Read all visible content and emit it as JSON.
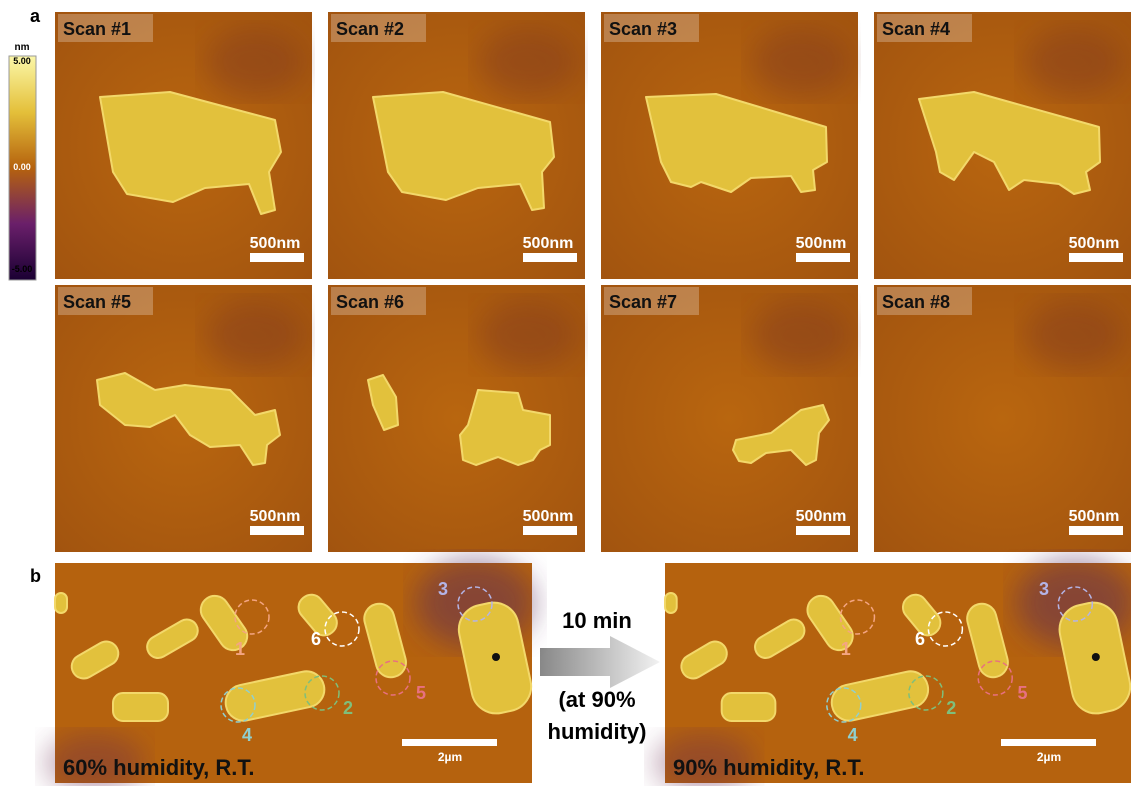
{
  "panel_a": {
    "label": "a",
    "colorbar": {
      "unit": "nm",
      "ticks": [
        "5.00",
        "0.00",
        "-5.00"
      ]
    },
    "scans": [
      {
        "title": "Scan #1",
        "scale_bar": "500nm"
      },
      {
        "title": "Scan #2",
        "scale_bar": "500nm"
      },
      {
        "title": "Scan #3",
        "scale_bar": "500nm"
      },
      {
        "title": "Scan #4",
        "scale_bar": "500nm"
      },
      {
        "title": "Scan #5",
        "scale_bar": "500nm"
      },
      {
        "title": "Scan #6",
        "scale_bar": "500nm"
      },
      {
        "title": "Scan #7",
        "scale_bar": "500nm"
      },
      {
        "title": "Scan #8",
        "scale_bar": "500nm"
      }
    ]
  },
  "panel_b": {
    "label": "b",
    "images": [
      {
        "caption": "60% humidity, R.T.",
        "scale_bar": "2µm"
      },
      {
        "caption": "90% humidity, R.T.",
        "scale_bar": "2µm"
      }
    ],
    "arrow": {
      "time": "10 min",
      "condition": [
        "(at 90%",
        "humidity)"
      ]
    },
    "markers": [
      {
        "label": "1",
        "color": "#f4a582"
      },
      {
        "label": "2",
        "color": "#7fbf7b"
      },
      {
        "label": "3",
        "color": "#b4b4e6"
      },
      {
        "label": "4",
        "color": "#8fd0d0"
      },
      {
        "label": "5",
        "color": "#e87080"
      },
      {
        "label": "6",
        "color": "#ffffff"
      }
    ]
  }
}
